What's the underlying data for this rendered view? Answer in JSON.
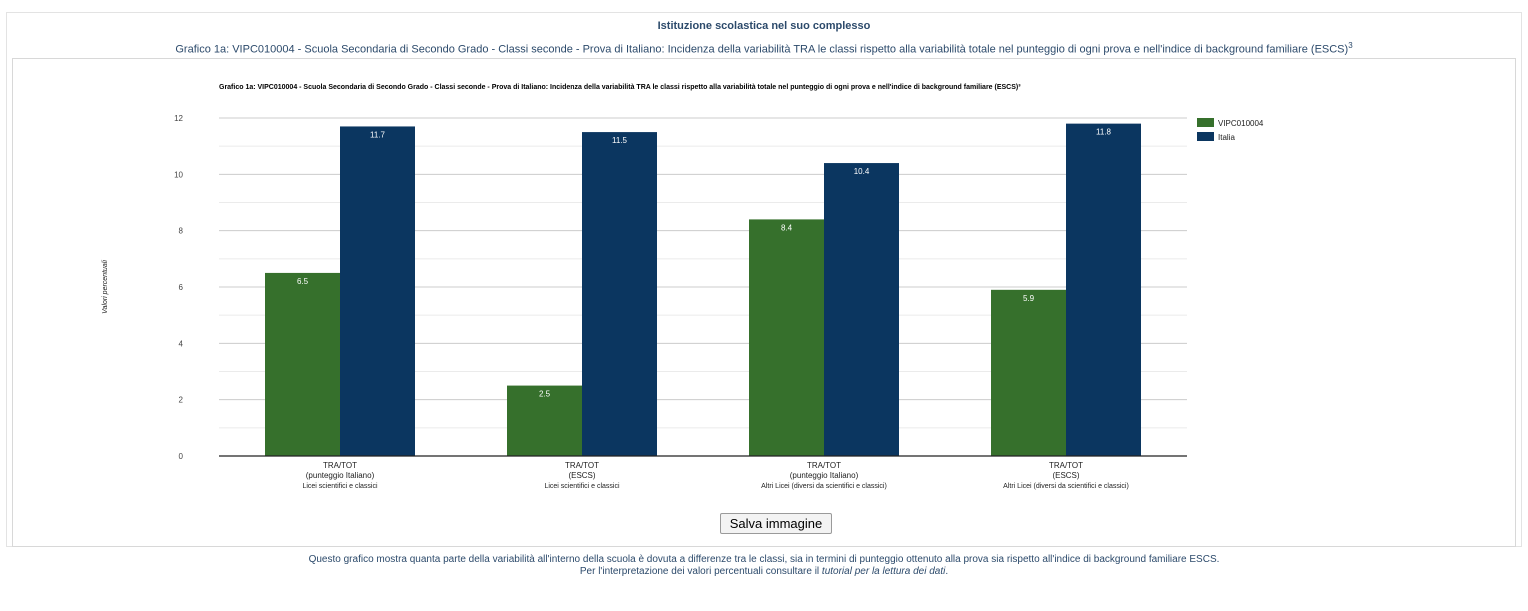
{
  "header": {
    "title": "Istituzione scolastica nel suo complesso",
    "subtitle": "Grafico 1a: VIPC010004 - Scuola Secondaria di Secondo Grado - Classi seconde - Prova di Italiano: Incidenza della variabilità TRA le classi rispetto alla variabilità totale nel punteggio di ogni prova e nell'indice di background familiare (ESCS)",
    "subtitle_sup": "3"
  },
  "chart_data": {
    "type": "bar",
    "title": "Grafico 1a: VIPC010004 - Scuola Secondaria di Secondo Grado - Classi seconde - Prova di Italiano: Incidenza della variabilità TRA le classi rispetto alla variabilità totale nel punteggio di ogni prova e nell'indice di background familiare (ESCS)³",
    "ylabel": "Valori percentuali",
    "xlabel": "",
    "ylim": [
      0,
      12
    ],
    "yticks": [
      0,
      2,
      4,
      6,
      8,
      10,
      12
    ],
    "grid": true,
    "legend_position": "right",
    "categories": [
      [
        "TRA/TOT",
        "(punteggio Italiano)",
        "Licei scientifici e classici"
      ],
      [
        "TRA/TOT",
        "(ESCS)",
        "Licei scientifici e classici"
      ],
      [
        "TRA/TOT",
        "(punteggio Italiano)",
        "Altri Licei (diversi da scientifici e classici)"
      ],
      [
        "TRA/TOT",
        "(ESCS)",
        "Altri Licei (diversi da scientifici e classici)"
      ]
    ],
    "series": [
      {
        "name": "VIPC010004",
        "color": "#36702c",
        "values": [
          6.5,
          2.5,
          8.4,
          5.9
        ]
      },
      {
        "name": "Italia",
        "color": "#0b3660",
        "values": [
          11.7,
          11.5,
          10.4,
          11.8
        ]
      }
    ]
  },
  "save_button": {
    "label": "Salva immagine"
  },
  "footer": {
    "line1": "Questo grafico mostra quanta parte della variabilità all'interno della scuola è dovuta a differenze tra le classi, sia in termini di punteggio ottenuto alla prova sia rispetto all'indice di background familiare ESCS.",
    "line2_prefix": "Per l'interpretazione dei valori percentuali consultare il ",
    "line2_link": "tutorial per la lettura dei dati",
    "line2_suffix": "."
  }
}
